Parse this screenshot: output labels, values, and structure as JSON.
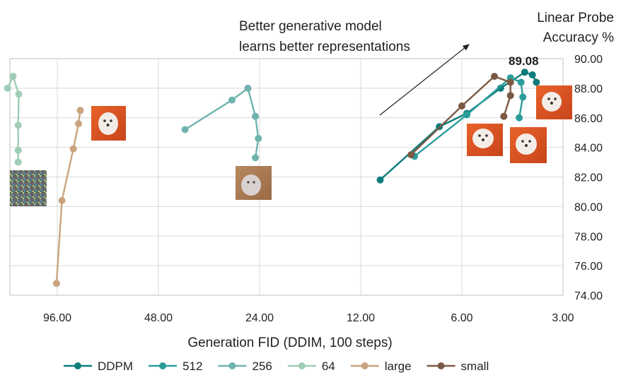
{
  "chart_data": {
    "type": "line",
    "title": "",
    "xlabel": "Generation FID (DDIM, 100 steps)",
    "ylabel": "Linear Probe Accuracy %",
    "ylabel_lines": [
      "Linear Probe",
      "Accuracy %"
    ],
    "x_scale": "log2-reversed",
    "xlim": [
      150,
      3
    ],
    "ylim": [
      74,
      90
    ],
    "x_ticks": [
      96,
      48,
      24,
      12,
      6,
      3
    ],
    "x_tick_labels": [
      "96.00",
      "48.00",
      "24.00",
      "12.00",
      "6.00",
      "3.00"
    ],
    "y_ticks": [
      74,
      76,
      78,
      80,
      82,
      84,
      86,
      88,
      90
    ],
    "y_tick_labels": [
      "74.00",
      "76.00",
      "78.00",
      "80.00",
      "82.00",
      "84.00",
      "86.00",
      "88.00",
      "90.00"
    ],
    "grid": true,
    "annotation": {
      "lines": [
        "Better generative model",
        "learns better representations"
      ],
      "arrow": "points toward upper-right"
    },
    "peak_label": "89.08",
    "peak_point": {
      "x": 3.9,
      "y": 89.08
    },
    "series": [
      {
        "name": "DDPM",
        "color": "#0e7c7b",
        "points": [
          [
            10.5,
            81.8
          ],
          [
            7.0,
            85.4
          ],
          [
            5.8,
            86.3
          ],
          [
            4.6,
            88.0
          ],
          [
            3.9,
            89.08
          ],
          [
            3.7,
            88.9
          ],
          [
            3.6,
            88.4
          ]
        ]
      },
      {
        "name": "512",
        "color": "#2a9d9a",
        "points": [
          [
            8.3,
            83.4
          ],
          [
            5.8,
            86.2
          ],
          [
            4.3,
            88.7
          ],
          [
            4.0,
            88.4
          ],
          [
            3.95,
            87.4
          ],
          [
            4.05,
            86.0
          ]
        ]
      },
      {
        "name": "256",
        "color": "#6fb3ae",
        "points": [
          [
            40.0,
            85.2
          ],
          [
            29.0,
            87.2
          ],
          [
            26.0,
            88.0
          ],
          [
            24.7,
            86.1
          ],
          [
            24.2,
            84.6
          ],
          [
            24.7,
            83.3
          ]
        ]
      },
      {
        "name": "64",
        "color": "#9fcdb5",
        "points": [
          [
            135,
            88.0
          ],
          [
            130,
            88.8
          ],
          [
            125,
            87.6
          ],
          [
            125.5,
            85.5
          ],
          [
            125.5,
            83.8
          ],
          [
            125.5,
            83.0
          ]
        ]
      },
      {
        "name": "large",
        "color": "#c9a47f",
        "points": [
          [
            96.5,
            74.8
          ],
          [
            93,
            80.4
          ],
          [
            86,
            83.9
          ],
          [
            83,
            85.6
          ],
          [
            82,
            86.5
          ]
        ]
      },
      {
        "name": "small",
        "color": "#7a5a44",
        "points": [
          [
            8.5,
            83.5
          ],
          [
            6.0,
            86.8
          ],
          [
            4.8,
            88.8
          ],
          [
            4.3,
            88.4
          ],
          [
            4.3,
            87.5
          ],
          [
            4.5,
            86.1
          ]
        ]
      }
    ]
  },
  "thumbnails": [
    {
      "name": "noise-sample-thumbnail",
      "style": "noise"
    },
    {
      "name": "large-sample-thumbnail",
      "style": "dog-orange"
    },
    {
      "name": "blurry-sample-thumbnail",
      "style": "dog-blurry"
    },
    {
      "name": "ddpm-sample-thumbnail-1",
      "style": "dog-orange"
    },
    {
      "name": "ddpm-sample-thumbnail-2",
      "style": "dog-orange"
    },
    {
      "name": "ddpm-sample-thumbnail-3",
      "style": "dog-orange"
    }
  ]
}
